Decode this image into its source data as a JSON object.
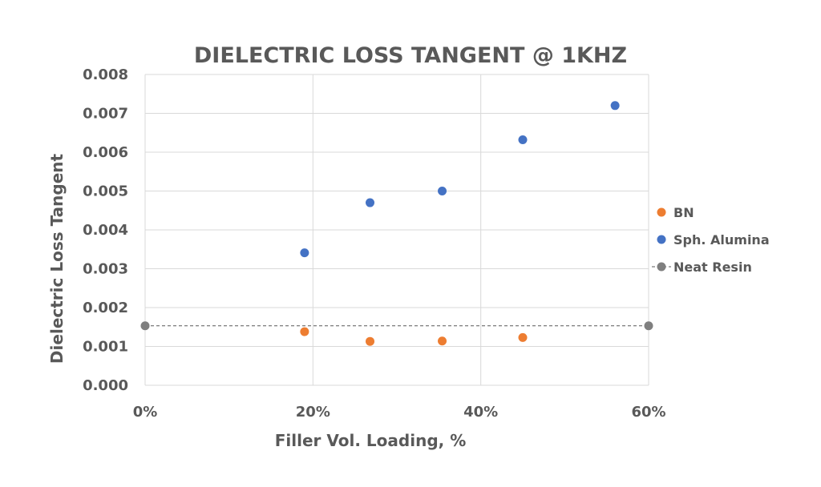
{
  "chart_data": {
    "type": "scatter",
    "title": "DIELECTRIC LOSS TANGENT @ 1KHZ",
    "xlabel": "Filler Vol. Loading, %",
    "ylabel": "Dielectric Loss Tangent",
    "xlim": [
      0,
      0.6
    ],
    "ylim": [
      0,
      0.008
    ],
    "x_ticks": [
      {
        "value": 0,
        "label": "0%"
      },
      {
        "value": 0.2,
        "label": "20%"
      },
      {
        "value": 0.4,
        "label": "40%"
      },
      {
        "value": 0.6,
        "label": "60%"
      }
    ],
    "y_ticks": [
      {
        "value": 0.0,
        "label": "0.000"
      },
      {
        "value": 0.001,
        "label": "0.001"
      },
      {
        "value": 0.002,
        "label": "0.002"
      },
      {
        "value": 0.003,
        "label": "0.003"
      },
      {
        "value": 0.004,
        "label": "0.004"
      },
      {
        "value": 0.005,
        "label": "0.005"
      },
      {
        "value": 0.006,
        "label": "0.006"
      },
      {
        "value": 0.007,
        "label": "0.007"
      },
      {
        "value": 0.008,
        "label": "0.008"
      }
    ],
    "grid": true,
    "legend_position": "right",
    "series": [
      {
        "name": "BN",
        "color": "#ed7d31",
        "points": [
          {
            "x": 0.19,
            "y": 0.00138
          },
          {
            "x": 0.268,
            "y": 0.00113
          },
          {
            "x": 0.354,
            "y": 0.00114
          },
          {
            "x": 0.45,
            "y": 0.00123
          }
        ]
      },
      {
        "name": "Sph. Alumina",
        "color": "#4472c4",
        "points": [
          {
            "x": 0.19,
            "y": 0.00341
          },
          {
            "x": 0.268,
            "y": 0.0047
          },
          {
            "x": 0.354,
            "y": 0.005
          },
          {
            "x": 0.45,
            "y": 0.00632
          },
          {
            "x": 0.56,
            "y": 0.0072
          }
        ]
      },
      {
        "name": "Neat Resin",
        "color": "#7f7f7f",
        "line_style": "dashed",
        "points": [
          {
            "x": 0,
            "y": 0.00153
          },
          {
            "x": 0.6,
            "y": 0.00153
          }
        ]
      }
    ]
  }
}
